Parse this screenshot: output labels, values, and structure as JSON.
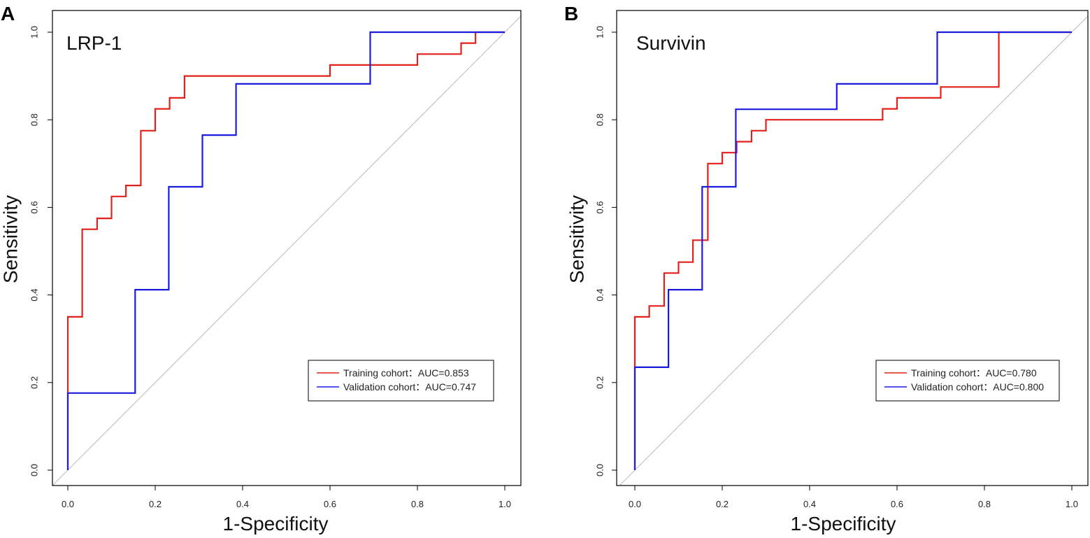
{
  "chart_data": [
    {
      "type": "line",
      "panel_label": "A",
      "title": "LRP-1",
      "xlabel": "1-Specificity",
      "ylabel": "Sensitivity",
      "xlim": [
        0,
        1
      ],
      "ylim": [
        0,
        1
      ],
      "grid": false,
      "diagonal_reference": true,
      "legend_position": "bottom-right",
      "xticks": [
        0,
        0.2,
        0.4,
        0.6,
        0.8,
        1.0
      ],
      "xtick_labels": [
        "0.0",
        "0.2",
        "0.4",
        "0.6",
        "0.8",
        "1.0"
      ],
      "yticks": [
        0,
        0.2,
        0.4,
        0.6,
        0.8,
        1.0
      ],
      "ytick_labels": [
        "0.0",
        "0.2",
        "0.4",
        "0.6",
        "0.8",
        "1.0"
      ],
      "series": [
        {
          "name": "Training cohort：AUC=0.853",
          "color": "#e3211c",
          "x": [
            0,
            0,
            0.033,
            0.033,
            0.067,
            0.067,
            0.1,
            0.1,
            0.133,
            0.133,
            0.167,
            0.167,
            0.2,
            0.2,
            0.233,
            0.233,
            0.267,
            0.267,
            0.6,
            0.6,
            0.8,
            0.8,
            0.9,
            0.9,
            0.933,
            0.933,
            1
          ],
          "y": [
            0,
            0.35,
            0.35,
            0.55,
            0.55,
            0.575,
            0.575,
            0.625,
            0.625,
            0.65,
            0.65,
            0.775,
            0.775,
            0.825,
            0.825,
            0.85,
            0.85,
            0.9,
            0.9,
            0.925,
            0.925,
            0.95,
            0.95,
            0.975,
            0.975,
            1,
            1
          ]
        },
        {
          "name": "Validation cohort：AUC=0.747",
          "color": "#1c1ce0",
          "x": [
            0,
            0,
            0.154,
            0.154,
            0.231,
            0.231,
            0.308,
            0.308,
            0.385,
            0.385,
            0.692,
            0.692,
            1
          ],
          "y": [
            0,
            0.176,
            0.176,
            0.412,
            0.412,
            0.647,
            0.647,
            0.765,
            0.765,
            0.882,
            0.882,
            1,
            1
          ]
        }
      ]
    },
    {
      "type": "line",
      "panel_label": "B",
      "title": "Survivin",
      "xlabel": "1-Specificity",
      "ylabel": "Sensitivity",
      "xlim": [
        0,
        1
      ],
      "ylim": [
        0,
        1
      ],
      "grid": false,
      "diagonal_reference": true,
      "legend_position": "bottom-right",
      "xticks": [
        0,
        0.2,
        0.4,
        0.6,
        0.8,
        1.0
      ],
      "xtick_labels": [
        "0.0",
        "0.2",
        "0.4",
        "0.6",
        "0.8",
        "1.0"
      ],
      "yticks": [
        0,
        0.2,
        0.4,
        0.6,
        0.8,
        1.0
      ],
      "ytick_labels": [
        "0.0",
        "0.2",
        "0.4",
        "0.6",
        "0.8",
        "1.0"
      ],
      "series": [
        {
          "name": "Training cohort：AUC=0.780",
          "color": "#e3211c",
          "x": [
            0,
            0,
            0.033,
            0.033,
            0.067,
            0.067,
            0.1,
            0.1,
            0.133,
            0.133,
            0.167,
            0.167,
            0.2,
            0.2,
            0.233,
            0.233,
            0.267,
            0.267,
            0.3,
            0.3,
            0.567,
            0.567,
            0.6,
            0.6,
            0.7,
            0.7,
            0.833,
            0.833,
            1
          ],
          "y": [
            0,
            0.35,
            0.35,
            0.375,
            0.375,
            0.45,
            0.45,
            0.475,
            0.475,
            0.525,
            0.525,
            0.7,
            0.7,
            0.725,
            0.725,
            0.75,
            0.75,
            0.775,
            0.775,
            0.8,
            0.8,
            0.825,
            0.825,
            0.85,
            0.85,
            0.875,
            0.875,
            1,
            1
          ]
        },
        {
          "name": "Validation cohort：AUC=0.800",
          "color": "#1c1ce0",
          "x": [
            0,
            0,
            0.077,
            0.077,
            0.154,
            0.154,
            0.231,
            0.231,
            0.462,
            0.462,
            0.692,
            0.692,
            1
          ],
          "y": [
            0,
            0.235,
            0.235,
            0.412,
            0.412,
            0.647,
            0.647,
            0.824,
            0.824,
            0.882,
            0.882,
            1,
            1
          ]
        }
      ]
    }
  ],
  "colors": {
    "diagonal": "#b9b9b9",
    "frame": "#000000"
  }
}
